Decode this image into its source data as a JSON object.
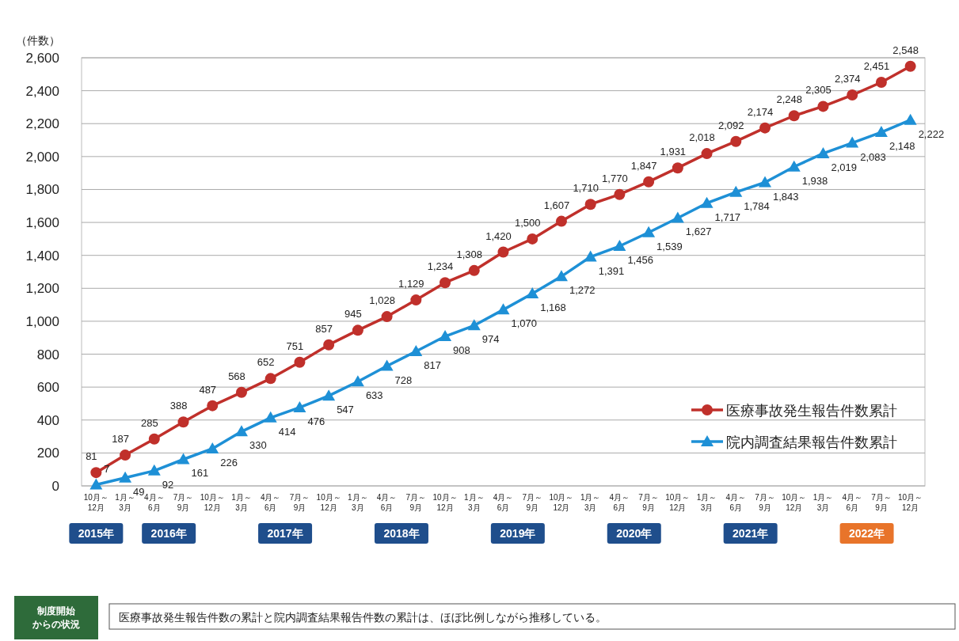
{
  "chart_data": {
    "type": "line",
    "ylabel": "（件数）",
    "categories": [
      "10月～12月",
      "1月～3月",
      "4月～6月",
      "7月～9月",
      "10月～12月",
      "1月～3月",
      "4月～6月",
      "7月～9月",
      "10月～12月",
      "1月～3月",
      "4月～6月",
      "7月～9月",
      "10月～12月",
      "1月～3月",
      "4月～6月",
      "7月～9月",
      "10月～12月",
      "1月～3月",
      "4月～6月",
      "7月～9月",
      "10月～12月",
      "1月～3月",
      "4月～6月",
      "7月～9月",
      "10月～12月",
      "1月～3月",
      "4月～6月",
      "7月～9月",
      "10月～12月"
    ],
    "series": [
      {
        "name": "医療事故発生報告件数累計",
        "color": "#c0302b",
        "marker": "circle",
        "values": [
          81,
          187,
          285,
          388,
          487,
          568,
          652,
          751,
          857,
          945,
          1028,
          1129,
          1234,
          1308,
          1420,
          1500,
          1607,
          1710,
          1770,
          1847,
          1931,
          2018,
          2092,
          2174,
          2248,
          2305,
          2374,
          2451,
          2548
        ],
        "value_labels": [
          "81",
          "187",
          "285",
          "388",
          "487",
          "568",
          "652",
          "751",
          "857",
          "945",
          "1,028",
          "1,129",
          "1,234",
          "1,308",
          "1,420",
          "1,500",
          "1,607",
          "1,710",
          "1,770",
          "1,847",
          "1,931",
          "2,018",
          "2,092",
          "2,174",
          "2,248",
          "2,305",
          "2,374",
          "2,451",
          "2,548"
        ]
      },
      {
        "name": "院内調査結果報告件数累計",
        "color": "#1e90d6",
        "marker": "triangle",
        "values": [
          7,
          49,
          92,
          161,
          226,
          330,
          414,
          476,
          547,
          633,
          728,
          817,
          908,
          974,
          1070,
          1168,
          1272,
          1391,
          1456,
          1539,
          1627,
          1717,
          1784,
          1843,
          1938,
          2019,
          2083,
          2148,
          2222
        ],
        "value_labels": [
          "7",
          "49",
          "92",
          "161",
          "226",
          "330",
          "414",
          "476",
          "547",
          "633",
          "728",
          "817",
          "908",
          "974",
          "1,070",
          "1,168",
          "1,272",
          "1,391",
          "1,456",
          "1,539",
          "1,627",
          "1,717",
          "1,784",
          "1,843",
          "1,938",
          "2,019",
          "2,083",
          "2,148",
          "2,222"
        ]
      }
    ],
    "ylim": [
      0,
      2600
    ],
    "yticks": [
      0,
      200,
      400,
      600,
      800,
      {
        "value": 1000,
        "label": "1,000"
      },
      {
        "value": 1200,
        "label": "1,200"
      },
      {
        "value": 1400,
        "label": "1,400"
      },
      {
        "value": 1600,
        "label": "1,600"
      },
      {
        "value": 1800,
        "label": "1,800"
      },
      {
        "value": 2000,
        "label": "2,000"
      },
      {
        "value": 2200,
        "label": "2,200"
      },
      {
        "value": 2400,
        "label": "2,400"
      },
      {
        "value": 2600,
        "label": "2,600"
      }
    ],
    "grid": "y",
    "legend": "bottom right",
    "annotations": [
      "2015年",
      "2016年",
      "2017年",
      "2018年",
      "2019年",
      "2020年",
      "2021年",
      "2022年",
      "制度開始からの状況",
      "医療事故発生報告件数の累計と院内調査結果報告件数の累計は、ほぼ比例しながら推移している。"
    ]
  }
}
